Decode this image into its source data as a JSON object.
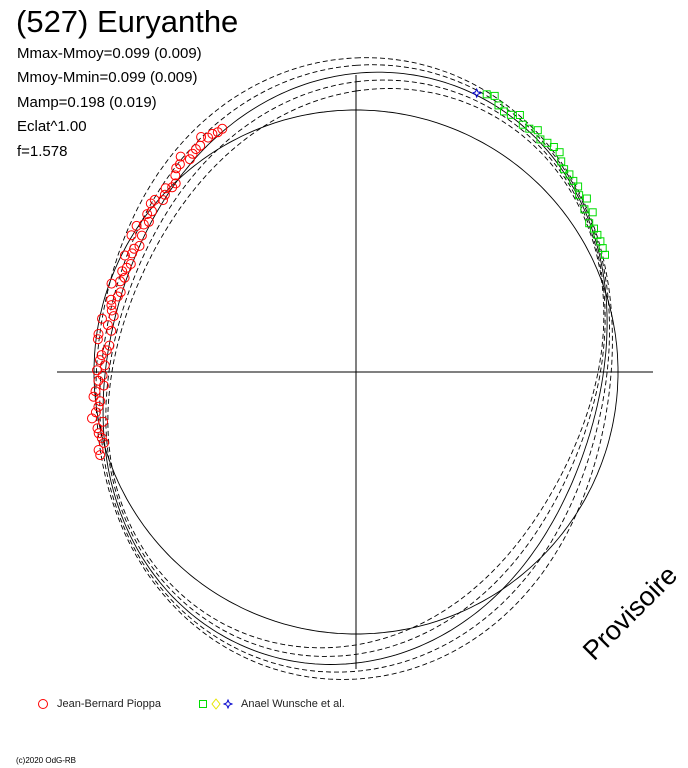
{
  "header": {
    "title": "(527) Euryanthe",
    "stats": [
      "Mmax-Mmoy=0.099 (0.009)",
      "Mmoy-Mmin=0.099 (0.009)",
      "Mamp=0.198 (0.019)",
      "Eclat^1.00",
      "f=1.578"
    ]
  },
  "watermark": "Provisoire",
  "copyright": "(c)2020 OdG-RB",
  "legend": {
    "observer_1": "Jean-Bernard Pioppa",
    "observer_2": "Anael Wunsche et al."
  },
  "colors": {
    "axis": "#000000",
    "model": "#000000",
    "series_1": "#ff0000",
    "series_2_square": "#00dd00",
    "series_2_diamond": "#e6e600",
    "series_2_star": "#0000cc"
  },
  "chart_data": {
    "type": "scatter",
    "subtype": "polar lightcurve",
    "grid": false,
    "legend_position": "bottom-left",
    "series": [
      {
        "name": "Jean-Bernard Pioppa",
        "marker": "circle",
        "phase_range": [
          0.7,
          0.92
        ],
        "count": 70
      },
      {
        "name": "Anael Wunsche et al.",
        "marker": "square",
        "phase_range": [
          0.07,
          0.18
        ],
        "count": 28
      }
    ],
    "model": {
      "curves": "solid fit with dashed uncertainty envelopes",
      "amplitude": 0.198
    }
  }
}
